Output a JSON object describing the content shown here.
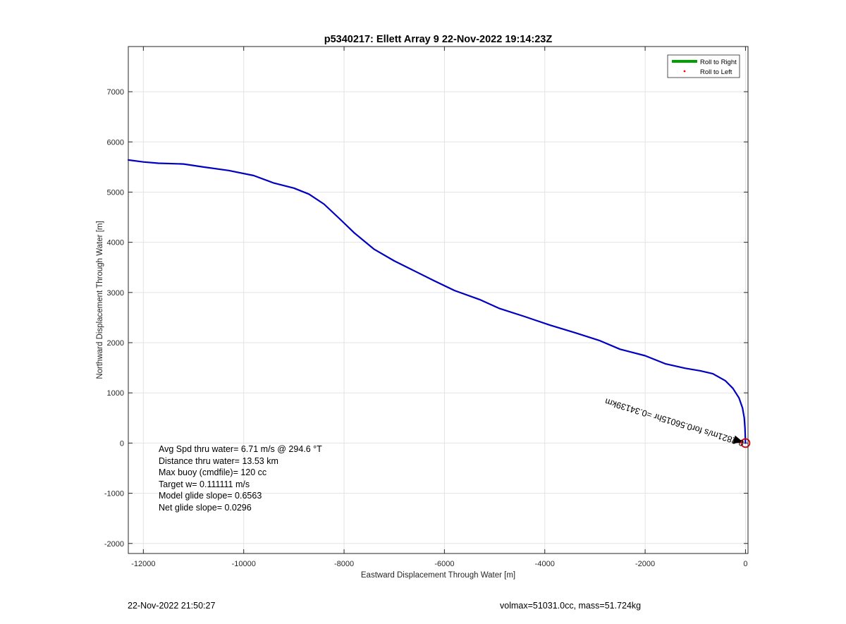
{
  "chart_data": {
    "type": "line",
    "title": "p5340217: Ellett Array 9 22-Nov-2022 19:14:23Z",
    "xlabel": "Eastward Displacement Through Water [m]",
    "ylabel": "Northward Displacement Through Water [m]",
    "xlim": [
      -12300,
      50
    ],
    "ylim": [
      -2200,
      7900
    ],
    "xticks": [
      -12000,
      -10000,
      -8000,
      -6000,
      -4000,
      -2000,
      0
    ],
    "yticks": [
      -2000,
      -1000,
      0,
      1000,
      2000,
      3000,
      4000,
      5000,
      6000,
      7000
    ],
    "grid": true,
    "legend": {
      "position": "top-right",
      "entries": [
        {
          "label": "Roll to Right",
          "color": "#00a000",
          "marker": "line"
        },
        {
          "label": "Roll to Left",
          "color": "#ff0000",
          "marker": "dot"
        }
      ]
    },
    "series": [
      {
        "color": "#0000c0",
        "points": [
          [
            -12300,
            5640
          ],
          [
            -12000,
            5600
          ],
          [
            -11700,
            5575
          ],
          [
            -11200,
            5560
          ],
          [
            -10800,
            5500
          ],
          [
            -10300,
            5430
          ],
          [
            -9800,
            5330
          ],
          [
            -9400,
            5180
          ],
          [
            -9000,
            5080
          ],
          [
            -8700,
            4960
          ],
          [
            -8400,
            4760
          ],
          [
            -8100,
            4480
          ],
          [
            -7800,
            4190
          ],
          [
            -7400,
            3860
          ],
          [
            -7000,
            3630
          ],
          [
            -6600,
            3430
          ],
          [
            -6200,
            3230
          ],
          [
            -5800,
            3040
          ],
          [
            -5300,
            2860
          ],
          [
            -4900,
            2680
          ],
          [
            -4400,
            2520
          ],
          [
            -3900,
            2350
          ],
          [
            -3400,
            2200
          ],
          [
            -2900,
            2040
          ],
          [
            -2500,
            1870
          ],
          [
            -2000,
            1740
          ],
          [
            -1600,
            1580
          ],
          [
            -1200,
            1490
          ],
          [
            -900,
            1440
          ],
          [
            -650,
            1380
          ],
          [
            -400,
            1240
          ],
          [
            -250,
            1090
          ],
          [
            -130,
            900
          ],
          [
            -60,
            700
          ],
          [
            -25,
            500
          ],
          [
            -10,
            300
          ],
          [
            -3,
            100
          ],
          [
            0,
            0
          ]
        ]
      }
    ],
    "current_vector": {
      "label": "0.2821m/s for0.56015hr =0.34139km",
      "to": [
        0,
        0
      ],
      "color": "#000000"
    },
    "start_marker": {
      "at": [
        0,
        0
      ],
      "color": "#dd0000"
    },
    "annotations": [
      "Avg Spd thru water=  6.71 m/s @ 294.6 °T",
      "Distance thru water= 13.53 km",
      "Max buoy (cmdfile)= 120 cc",
      "Target w= 0.111111 m/s",
      "Model glide slope= 0.6563",
      "Net glide slope= 0.0296"
    ]
  },
  "footer": {
    "timestamp": "22-Nov-2022 21:50:27",
    "info": "volmax=51031.0cc, mass=51.724kg"
  }
}
